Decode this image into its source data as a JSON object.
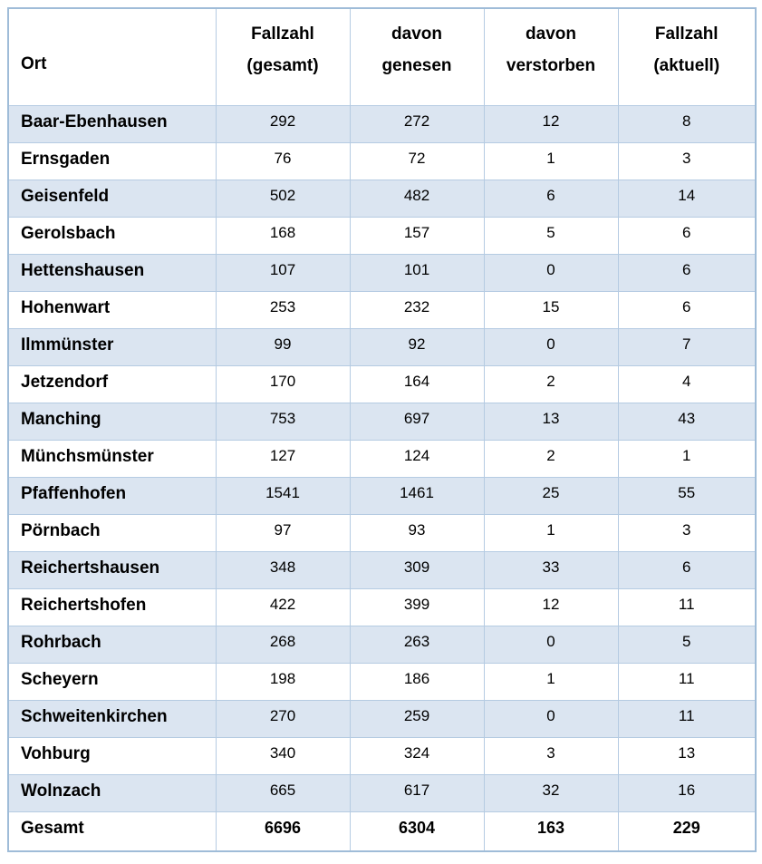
{
  "colors": {
    "row_shade": "#dbe5f1",
    "border_inner": "#b5cbe2",
    "border_outer": "#9fbcd8",
    "text": "#000000",
    "background": "#ffffff"
  },
  "table": {
    "header": {
      "ort": {
        "line1": "Ort"
      },
      "fallzahl_gesamt": {
        "line1": "Fallzahl",
        "line2": "(gesamt)"
      },
      "davon_genesen": {
        "line1": "davon",
        "line2": "genesen"
      },
      "davon_verstorben": {
        "line1": "davon",
        "line2": "verstorben"
      },
      "fallzahl_aktuell": {
        "line1": "Fallzahl",
        "line2": "(aktuell)"
      }
    },
    "rows": [
      {
        "ort": "Baar-Ebenhausen",
        "gesamt": "292",
        "genesen": "272",
        "verstorben": "12",
        "aktuell": "8"
      },
      {
        "ort": "Ernsgaden",
        "gesamt": "76",
        "genesen": "72",
        "verstorben": "1",
        "aktuell": "3"
      },
      {
        "ort": "Geisenfeld",
        "gesamt": "502",
        "genesen": "482",
        "verstorben": "6",
        "aktuell": "14"
      },
      {
        "ort": "Gerolsbach",
        "gesamt": "168",
        "genesen": "157",
        "verstorben": "5",
        "aktuell": "6"
      },
      {
        "ort": "Hettenshausen",
        "gesamt": "107",
        "genesen": "101",
        "verstorben": "0",
        "aktuell": "6"
      },
      {
        "ort": "Hohenwart",
        "gesamt": "253",
        "genesen": "232",
        "verstorben": "15",
        "aktuell": "6"
      },
      {
        "ort": "Ilmmünster",
        "gesamt": "99",
        "genesen": "92",
        "verstorben": "0",
        "aktuell": "7"
      },
      {
        "ort": "Jetzendorf",
        "gesamt": "170",
        "genesen": "164",
        "verstorben": "2",
        "aktuell": "4"
      },
      {
        "ort": "Manching",
        "gesamt": "753",
        "genesen": "697",
        "verstorben": "13",
        "aktuell": "43"
      },
      {
        "ort": "Münchsmünster",
        "gesamt": "127",
        "genesen": "124",
        "verstorben": "2",
        "aktuell": "1"
      },
      {
        "ort": "Pfaffenhofen",
        "gesamt": "1541",
        "genesen": "1461",
        "verstorben": "25",
        "aktuell": "55"
      },
      {
        "ort": "Pörnbach",
        "gesamt": "97",
        "genesen": "93",
        "verstorben": "1",
        "aktuell": "3"
      },
      {
        "ort": "Reichertshausen",
        "gesamt": "348",
        "genesen": "309",
        "verstorben": "33",
        "aktuell": "6"
      },
      {
        "ort": "Reichertshofen",
        "gesamt": "422",
        "genesen": "399",
        "verstorben": "12",
        "aktuell": "11"
      },
      {
        "ort": "Rohrbach",
        "gesamt": "268",
        "genesen": "263",
        "verstorben": "0",
        "aktuell": "5"
      },
      {
        "ort": "Scheyern",
        "gesamt": "198",
        "genesen": "186",
        "verstorben": "1",
        "aktuell": "11"
      },
      {
        "ort": "Schweitenkirchen",
        "gesamt": "270",
        "genesen": "259",
        "verstorben": "0",
        "aktuell": "11"
      },
      {
        "ort": "Vohburg",
        "gesamt": "340",
        "genesen": "324",
        "verstorben": "3",
        "aktuell": "13"
      },
      {
        "ort": "Wolnzach",
        "gesamt": "665",
        "genesen": "617",
        "verstorben": "32",
        "aktuell": "16"
      }
    ],
    "total": {
      "ort": "Gesamt",
      "gesamt": "6696",
      "genesen": "6304",
      "verstorben": "163",
      "aktuell": "229"
    }
  }
}
